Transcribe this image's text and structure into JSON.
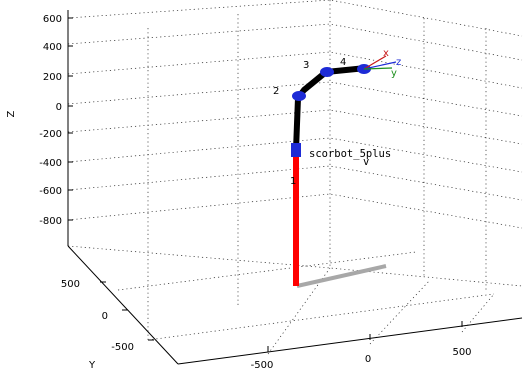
{
  "axes": {
    "z_label": "Z",
    "y_label": "Y",
    "z_ticks": [
      "600",
      "400",
      "200",
      "0",
      "-200",
      "-400",
      "-600",
      "-800"
    ],
    "y_ticks": [
      "500",
      "0",
      "-500"
    ],
    "x_ticks": [
      "-500",
      "0",
      "500"
    ],
    "grid": true
  },
  "robot": {
    "name": "scorbot_5plus",
    "name_suffix": "v",
    "joint_labels": [
      "1",
      "2",
      "3",
      "4"
    ],
    "frame_labels": {
      "x": "x",
      "y": "y",
      "z": "z"
    },
    "colors": {
      "base": "#ff0000",
      "links": "#000000",
      "joints": "#1d2bd6",
      "shadow": "#a8a8a8",
      "frame_x": "#c81818",
      "frame_y": "#1c8f1c",
      "frame_z": "#1d2bd6"
    }
  }
}
